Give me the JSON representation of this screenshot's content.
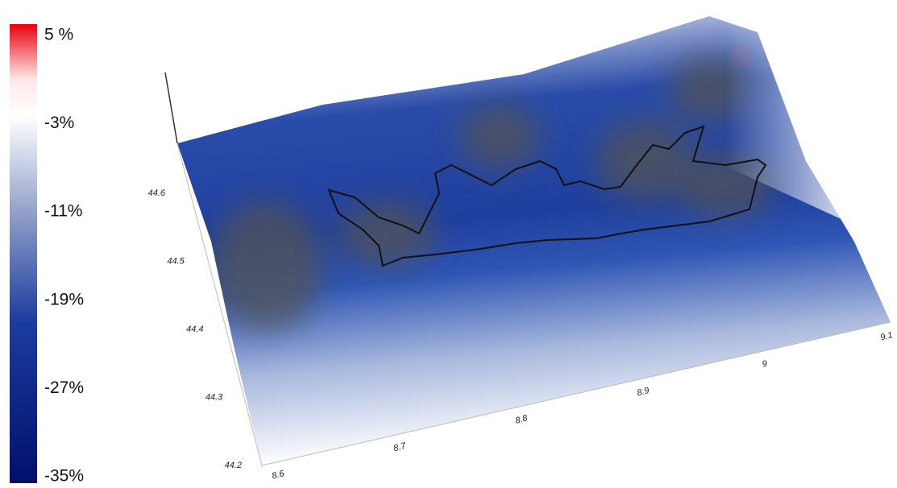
{
  "colorbar": {
    "labels": [
      "5 %",
      "-3%",
      "-11%",
      "-19%",
      "-27%",
      "-35%"
    ]
  },
  "axes": {
    "lat_ticks": [
      44.2,
      44.3,
      44.4,
      44.5,
      44.6
    ],
    "lon_ticks": [
      8.6,
      8.7,
      8.8,
      8.9,
      9,
      9.1
    ]
  }
}
